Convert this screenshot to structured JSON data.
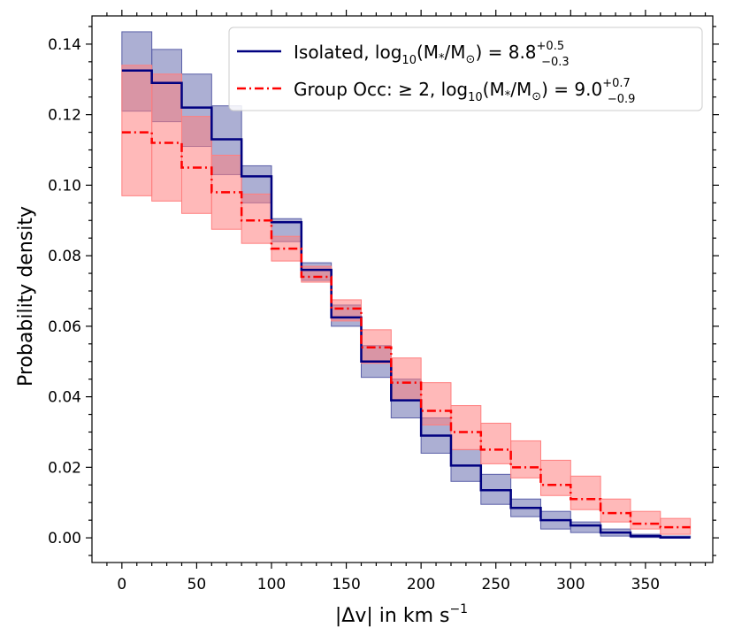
{
  "chart_data": {
    "type": "step-histogram",
    "xlabel": "|Δv| in km s",
    "xlabel_exponent": "−1",
    "ylabel": "Probability density",
    "xlim": [
      -20,
      395
    ],
    "ylim": [
      -0.007,
      0.148
    ],
    "x_ticks": [
      0,
      50,
      100,
      150,
      200,
      250,
      300,
      350
    ],
    "x_tick_labels": [
      "0",
      "50",
      "100",
      "150",
      "200",
      "250",
      "300",
      "350"
    ],
    "y_ticks": [
      0.0,
      0.02,
      0.04,
      0.06,
      0.08,
      0.1,
      0.12,
      0.14
    ],
    "y_tick_labels": [
      "0.00",
      "0.02",
      "0.04",
      "0.06",
      "0.08",
      "0.10",
      "0.12",
      "0.14"
    ],
    "bin_edges": [
      0,
      20,
      40,
      60,
      80,
      100,
      120,
      140,
      160,
      180,
      200,
      220,
      240,
      260,
      280,
      300,
      320,
      340,
      360,
      380
    ],
    "legend_position": "top-right",
    "series": [
      {
        "name": "Isolated",
        "legend_prefix": "Isolated, log",
        "legend_sub10": "10",
        "legend_mid": "(M",
        "legend_star": "*",
        "legend_slash": "/M",
        "legend_sun": "⊙",
        "legend_eq": ") = 8.8",
        "legend_up": "+0.5",
        "legend_down": "−0.3",
        "color": "#000080",
        "fill_color": "#5a5fa8",
        "line_style": "solid",
        "values": [
          0.1325,
          0.129,
          0.122,
          0.113,
          0.1025,
          0.0895,
          0.076,
          0.0625,
          0.05,
          0.039,
          0.029,
          0.0205,
          0.0135,
          0.0085,
          0.005,
          0.0035,
          0.0015,
          0.0005,
          0.0001
        ],
        "lower": [
          0.121,
          0.118,
          0.111,
          0.103,
          0.095,
          0.084,
          0.073,
          0.06,
          0.0455,
          0.034,
          0.024,
          0.016,
          0.0095,
          0.006,
          0.0025,
          0.0015,
          0.0005,
          0.0001,
          0.0
        ],
        "upper": [
          0.1435,
          0.1385,
          0.1315,
          0.1225,
          0.1055,
          0.0905,
          0.078,
          0.066,
          0.0545,
          0.045,
          0.034,
          0.025,
          0.018,
          0.011,
          0.0075,
          0.0045,
          0.0025,
          0.001,
          0.0005
        ]
      },
      {
        "name": "Group Occ: ≥2",
        "legend_prefix": "Group Occ: ≥ 2, log",
        "legend_sub10": "10",
        "legend_mid": "(M",
        "legend_star": "*",
        "legend_slash": "/M",
        "legend_sun": "⊙",
        "legend_eq": ") = 9.0",
        "legend_up": "+0.7",
        "legend_down": "−0.9",
        "color": "#ff0000",
        "fill_color": "#ff7f7f",
        "line_style": "dashdot",
        "values": [
          0.115,
          0.112,
          0.105,
          0.098,
          0.09,
          0.082,
          0.074,
          0.065,
          0.054,
          0.044,
          0.036,
          0.03,
          0.025,
          0.02,
          0.015,
          0.011,
          0.007,
          0.004,
          0.003
        ],
        "lower": [
          0.097,
          0.0955,
          0.092,
          0.0875,
          0.0835,
          0.0785,
          0.0725,
          0.0615,
          0.0495,
          0.039,
          0.032,
          0.025,
          0.021,
          0.017,
          0.012,
          0.008,
          0.0045,
          0.0025,
          0.001
        ],
        "upper": [
          0.134,
          0.1315,
          0.1195,
          0.1085,
          0.0975,
          0.0855,
          0.077,
          0.0675,
          0.059,
          0.051,
          0.044,
          0.0375,
          0.0325,
          0.0275,
          0.022,
          0.0175,
          0.011,
          0.0075,
          0.0055
        ]
      }
    ]
  }
}
